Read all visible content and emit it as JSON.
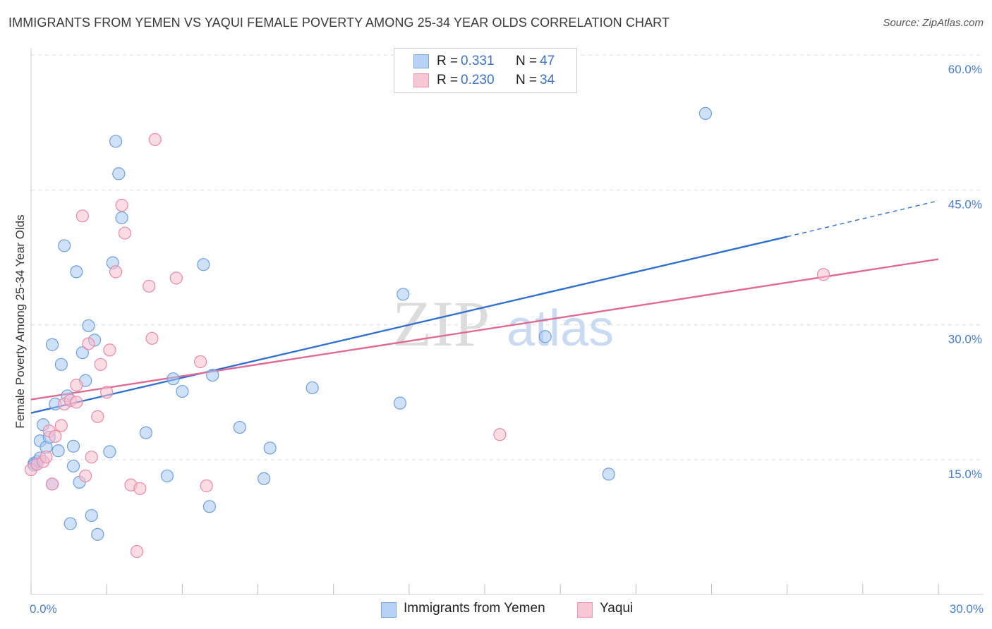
{
  "title": "IMMIGRANTS FROM YEMEN VS YAQUI FEMALE POVERTY AMONG 25-34 YEAR OLDS CORRELATION CHART",
  "source": "Source: ZipAtlas.com",
  "watermark": {
    "zip": "ZIP",
    "atlas": "atlas"
  },
  "legend": {
    "rows": [
      {
        "r_label": "R =",
        "r_value": "0.331",
        "n_label": "N =",
        "n_value": "47"
      },
      {
        "r_label": "R =",
        "r_value": "0.230",
        "n_label": "N =",
        "n_value": "34"
      }
    ]
  },
  "bottom_legend": [
    "Immigrants from Yemen",
    "Yaqui"
  ],
  "chart_data": {
    "type": "scatter",
    "title": "IMMIGRANTS FROM YEMEN VS YAQUI FEMALE POVERTY AMONG 25-34 YEAR OLDS CORRELATION CHART",
    "xlabel": "",
    "ylabel": "Female Poverty Among 25-34 Year Olds",
    "xlim": [
      0,
      30
    ],
    "ylim": [
      0,
      60
    ],
    "x_tick_labels": [
      "0.0%",
      "30.0%"
    ],
    "x_tick_values": [
      0,
      30
    ],
    "y_tick_labels": [
      "15.0%",
      "30.0%",
      "45.0%",
      "60.0%"
    ],
    "y_tick_values": [
      15,
      30,
      45,
      60
    ],
    "grid": true,
    "legend_position": "top-center",
    "series": [
      {
        "name": "Immigrants from Yemen",
        "color": "#a8c8f0",
        "stroke": "#6f9fdc",
        "line_color": "#2f6fd0",
        "trend": {
          "x0": 0,
          "y0": 20.2,
          "x1": 25,
          "y1": 39.8,
          "dashed_to_x": 30,
          "dashed_to_y": 43.8
        },
        "points": [
          [
            0.1,
            14.6
          ],
          [
            0.2,
            14.8
          ],
          [
            0.3,
            15.2
          ],
          [
            0.3,
            17.1
          ],
          [
            0.4,
            18.9
          ],
          [
            0.5,
            16.4
          ],
          [
            0.6,
            17.5
          ],
          [
            0.7,
            12.3
          ],
          [
            0.7,
            27.8
          ],
          [
            0.8,
            21.2
          ],
          [
            0.9,
            16.0
          ],
          [
            1.0,
            25.6
          ],
          [
            1.1,
            38.8
          ],
          [
            1.2,
            22.1
          ],
          [
            1.3,
            7.9
          ],
          [
            1.4,
            16.5
          ],
          [
            1.4,
            14.3
          ],
          [
            1.5,
            35.9
          ],
          [
            1.6,
            12.5
          ],
          [
            1.7,
            26.9
          ],
          [
            1.8,
            23.8
          ],
          [
            1.9,
            29.9
          ],
          [
            2.0,
            8.8
          ],
          [
            2.1,
            28.3
          ],
          [
            2.2,
            6.7
          ],
          [
            2.6,
            15.9
          ],
          [
            2.7,
            36.9
          ],
          [
            2.8,
            50.4
          ],
          [
            2.9,
            46.8
          ],
          [
            3.0,
            41.9
          ],
          [
            3.8,
            18.0
          ],
          [
            4.5,
            13.2
          ],
          [
            4.7,
            24.0
          ],
          [
            5.0,
            22.6
          ],
          [
            5.7,
            36.7
          ],
          [
            5.9,
            9.8
          ],
          [
            6.0,
            24.4
          ],
          [
            6.9,
            18.6
          ],
          [
            7.7,
            12.9
          ],
          [
            7.9,
            16.3
          ],
          [
            9.3,
            23.0
          ],
          [
            12.2,
            21.3
          ],
          [
            12.3,
            33.4
          ],
          [
            17.0,
            28.7
          ],
          [
            19.1,
            13.4
          ],
          [
            22.3,
            53.5
          ],
          [
            0.1,
            14.4
          ]
        ]
      },
      {
        "name": "Yaqui",
        "color": "#f8c0d0",
        "stroke": "#e88aa8",
        "line_color": "#e06a94",
        "trend": {
          "x0": 0,
          "y0": 21.7,
          "x1": 30,
          "y1": 37.3
        },
        "points": [
          [
            0.0,
            13.9
          ],
          [
            0.2,
            14.5
          ],
          [
            0.4,
            14.8
          ],
          [
            0.5,
            15.3
          ],
          [
            0.6,
            18.2
          ],
          [
            0.7,
            12.3
          ],
          [
            0.8,
            17.6
          ],
          [
            1.0,
            18.8
          ],
          [
            1.1,
            21.2
          ],
          [
            1.3,
            21.6
          ],
          [
            1.5,
            21.4
          ],
          [
            1.5,
            23.3
          ],
          [
            1.7,
            42.1
          ],
          [
            1.8,
            13.2
          ],
          [
            1.9,
            27.9
          ],
          [
            2.0,
            15.3
          ],
          [
            2.2,
            19.8
          ],
          [
            2.3,
            25.6
          ],
          [
            2.5,
            22.5
          ],
          [
            2.6,
            27.2
          ],
          [
            2.8,
            35.9
          ],
          [
            3.0,
            43.3
          ],
          [
            3.1,
            40.2
          ],
          [
            3.3,
            12.2
          ],
          [
            3.5,
            4.8
          ],
          [
            3.6,
            11.8
          ],
          [
            3.9,
            34.3
          ],
          [
            4.0,
            28.5
          ],
          [
            4.1,
            50.6
          ],
          [
            4.8,
            35.2
          ],
          [
            5.6,
            25.9
          ],
          [
            5.8,
            12.1
          ],
          [
            15.5,
            17.8
          ],
          [
            26.2,
            35.6
          ]
        ]
      }
    ]
  }
}
